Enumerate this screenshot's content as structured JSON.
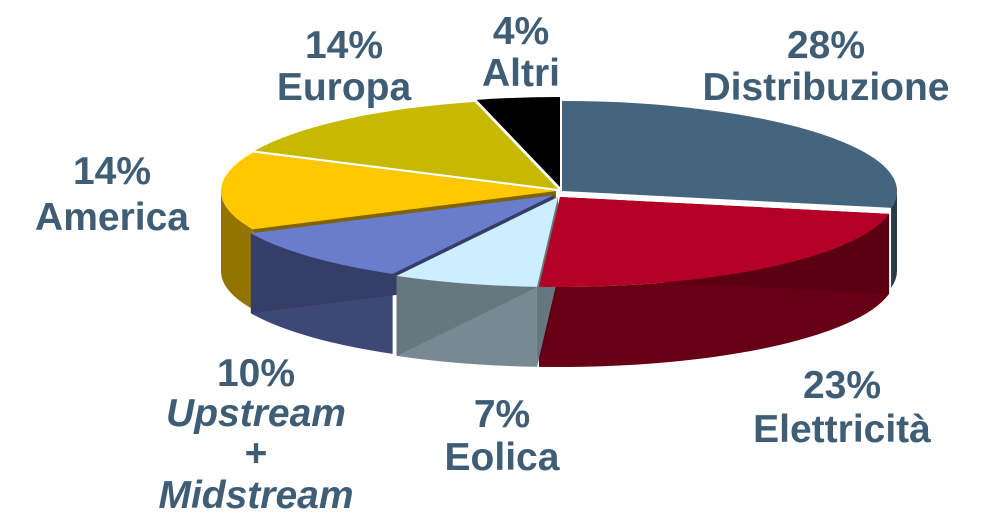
{
  "chart_data": {
    "type": "pie",
    "style": "3d-exploded",
    "series": [
      {
        "name": "Distribuzione",
        "value": 28,
        "label_pct": "28%",
        "color": "#44657d"
      },
      {
        "name": "Elettricità",
        "value": 23,
        "label_pct": "23%",
        "color": "#b30024"
      },
      {
        "name": "Eolica",
        "value": 7,
        "label_pct": "7%",
        "color": "#cdeeff"
      },
      {
        "name": "Upstream + Midstream",
        "value": 10,
        "label_pct": "10%",
        "color": "#6a7ccc"
      },
      {
        "name": "America",
        "value": 14,
        "label_pct": "14%",
        "color": "#ffc800"
      },
      {
        "name": "Europa",
        "value": 14,
        "label_pct": "14%",
        "color": "#c6b900"
      },
      {
        "name": "Altri",
        "value": 4,
        "label_pct": "4%",
        "color": "#000000"
      }
    ],
    "labels": {
      "distribuzione": {
        "pct": "28%",
        "name": "Distribuzione"
      },
      "elettricita": {
        "pct": "23%",
        "name": "Elettricità"
      },
      "eolica": {
        "pct": "7%",
        "name": "Eolica"
      },
      "upstream": {
        "pct": "10%",
        "line1": "Upstream",
        "line2": "+",
        "line3": "Midstream"
      },
      "america": {
        "pct": "14%",
        "name": "America"
      },
      "europa": {
        "pct": "14%",
        "name": "Europa"
      },
      "altri": {
        "pct": "4%",
        "name": "Altri"
      }
    },
    "label_color": "#3f5d75"
  }
}
